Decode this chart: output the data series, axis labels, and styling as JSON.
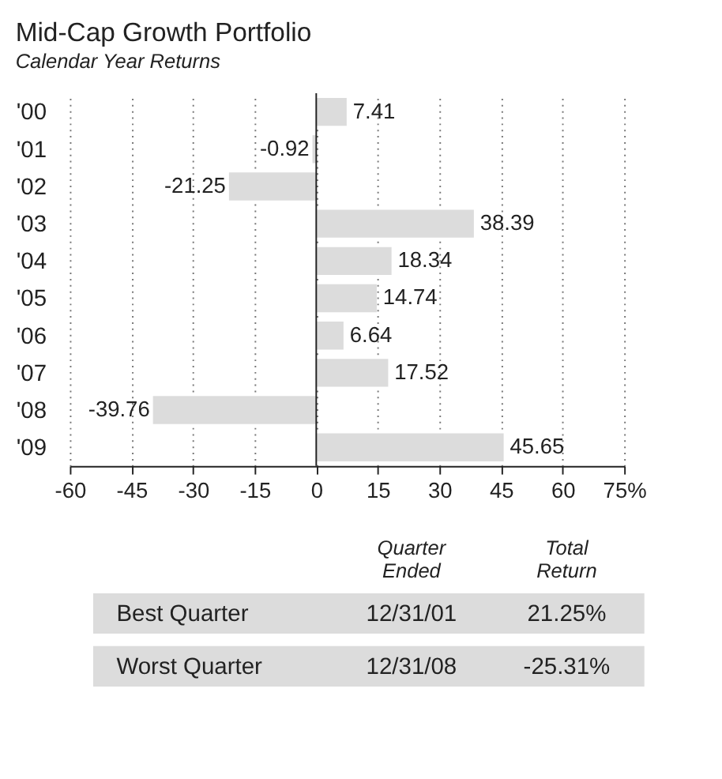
{
  "chart_data": {
    "type": "bar",
    "orientation": "horizontal",
    "title": "Mid-Cap Growth Portfolio",
    "subtitle": "Calendar Year Returns",
    "categories": [
      "'00",
      "'01",
      "'02",
      "'03",
      "'04",
      "'05",
      "'06",
      "'07",
      "'08",
      "'09"
    ],
    "values": [
      7.41,
      -0.92,
      -21.25,
      38.39,
      18.34,
      14.74,
      6.64,
      17.52,
      -39.76,
      45.65
    ],
    "color": "#dcdcdc",
    "data_labels": true,
    "xlim": [
      -60,
      75
    ],
    "xticks": [
      -60,
      -45,
      -30,
      -15,
      0,
      15,
      30,
      45,
      60,
      {
        "value": 75,
        "label": "75%"
      }
    ],
    "grid": "x",
    "annotations": [
      "Quarter Ended",
      "Total Return",
      "Best Quarter",
      "12/31/01",
      "21.25%",
      "Worst Quarter",
      "12/31/08",
      "-25.31%"
    ]
  }
}
